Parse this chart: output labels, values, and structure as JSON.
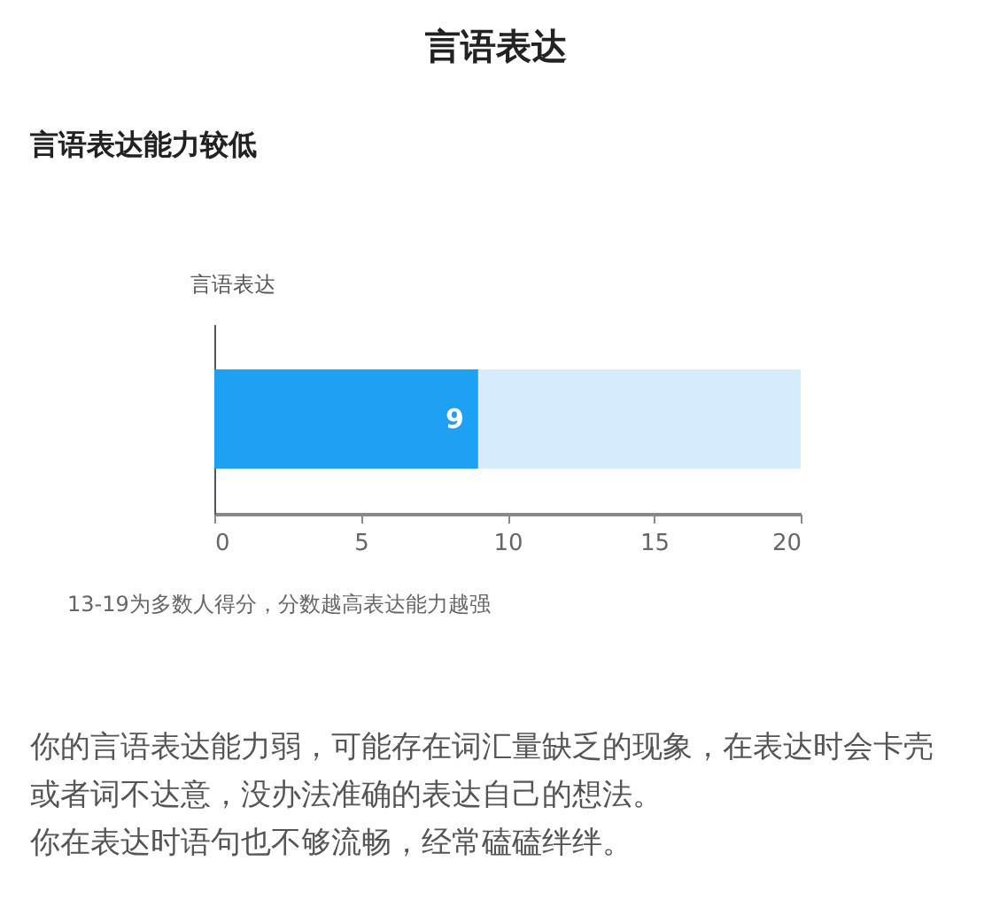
{
  "chart_data": {
    "type": "bar",
    "orientation": "horizontal",
    "stacked": true,
    "title": "言语表达",
    "subtitle": "言语表达能力较低",
    "ylabel": "言语表达",
    "categories": [
      null
    ],
    "series": [
      {
        "color": "#1ea1f2",
        "values": [
          9
        ],
        "value_labels": [
          "9"
        ]
      },
      {
        "color": "#d4ecfc",
        "values": [
          11
        ]
      }
    ],
    "xlim": [
      0,
      20
    ],
    "xticks": [
      0,
      5,
      10,
      15,
      20
    ],
    "grid": false,
    "legend": false,
    "annotations": [
      "13-19为多数人得分，分数越高表达能力越强",
      "你的言语表达能力弱，可能存在词汇量缺乏的现象，在表达时会卡壳或者词不达意，没办法准确的表达自己的想法。",
      "你在表达时语句也不够流畅，经常磕磕绊绊。"
    ]
  }
}
